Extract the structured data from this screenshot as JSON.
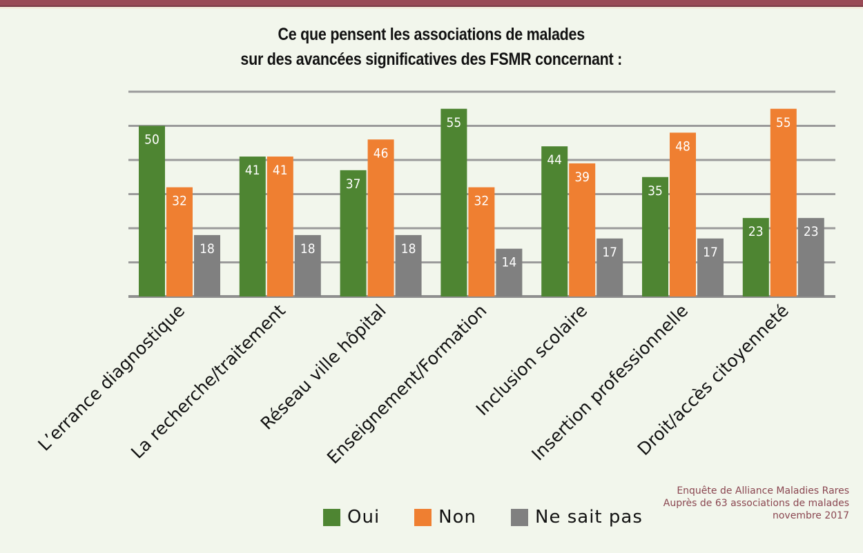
{
  "header": {
    "title_line1": "Ce que pensent les associations de malades",
    "title_line2": "sur des avancées significatives des FSMR concernant :"
  },
  "legend": {
    "items": [
      {
        "label": "Oui",
        "color": "#4e8532"
      },
      {
        "label": "Non",
        "color": "#ef7f31"
      },
      {
        "label": "Ne sait pas",
        "color": "#808080"
      }
    ]
  },
  "source": {
    "line1": "Enquête de Alliance Maladies Rares",
    "line2": "Auprès de 63 associations de malades",
    "line3": "novembre 2017"
  },
  "colors": {
    "background": "#f2f6ec",
    "topbar": "#9a4a55",
    "gridline": "#9a9a9a",
    "source_text": "#8a4650"
  },
  "chart_data": {
    "type": "bar",
    "title": "Ce que pensent les associations de malades sur des avancées significatives des FSMR concernant :",
    "xlabel": "",
    "ylabel": "",
    "ylim": [
      0,
      60
    ],
    "grid": true,
    "y_grid_step": 10,
    "legend_position": "bottom",
    "categories": [
      "L’errance diagnostique",
      "La recherche/traitement",
      "Réseau ville hôpital",
      "Enseignement/Formation",
      "Inclusion scolaire",
      "Insertion professionnelle",
      "Droit/accès citoyenneté"
    ],
    "series": [
      {
        "name": "Oui",
        "color": "#4e8532",
        "values": [
          50,
          41,
          37,
          55,
          44,
          35,
          23
        ]
      },
      {
        "name": "Non",
        "color": "#ef7f31",
        "values": [
          32,
          41,
          46,
          32,
          39,
          48,
          55
        ]
      },
      {
        "name": "Ne sait pas",
        "color": "#808080",
        "values": [
          18,
          18,
          18,
          14,
          17,
          17,
          23
        ]
      }
    ]
  }
}
